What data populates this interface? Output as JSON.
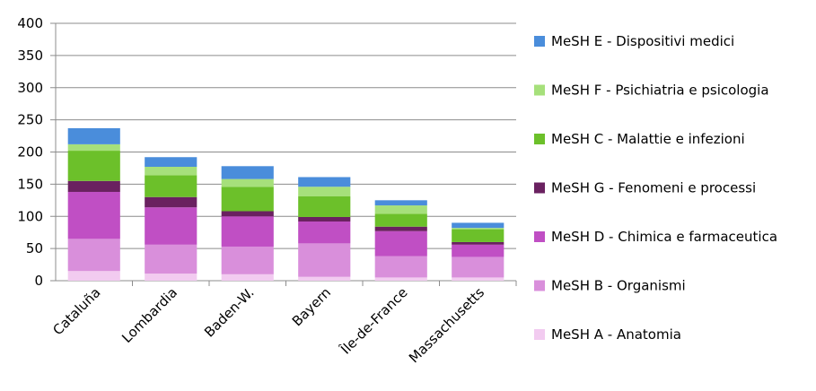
{
  "chart_data": {
    "type": "bar",
    "stacked": true,
    "categories": [
      "Cataluña",
      "Lombardia",
      "Baden-W.",
      "Bayern",
      "Île-de-France",
      "Massachusetts"
    ],
    "series": [
      {
        "name": "MeSH A - Anatomia",
        "color": "#f2cbf0",
        "values": [
          15,
          11,
          10,
          6,
          5,
          5
        ]
      },
      {
        "name": "MeSH B - Organismi",
        "color": "#d98fdb",
        "values": [
          50,
          45,
          43,
          52,
          33,
          32
        ]
      },
      {
        "name": "MeSH D - Chimica e farmaceutica",
        "color": "#c04fc4",
        "values": [
          73,
          58,
          47,
          34,
          39,
          19
        ]
      },
      {
        "name": "MeSH G - Fenomeni e processi",
        "color": "#6a2160",
        "values": [
          17,
          16,
          8,
          7,
          7,
          4
        ]
      },
      {
        "name": "MeSH C - Malattie e infezioni",
        "color": "#6cc02a",
        "values": [
          47,
          34,
          38,
          32,
          20,
          20
        ]
      },
      {
        "name": "MeSH F - Psichiatria e psicologia",
        "color": "#a6e07b",
        "values": [
          10,
          13,
          12,
          15,
          13,
          2
        ]
      },
      {
        "name": "MeSH E - Dispositivi medici",
        "color": "#4a8ddb",
        "values": [
          25,
          15,
          20,
          15,
          8,
          8
        ]
      }
    ],
    "legend_order": [
      6,
      5,
      4,
      3,
      2,
      1,
      0
    ],
    "ylim": [
      0,
      400
    ],
    "yticks": [
      0,
      50,
      100,
      150,
      200,
      250,
      300,
      350,
      400
    ],
    "grid": true,
    "legend_position": "right"
  }
}
